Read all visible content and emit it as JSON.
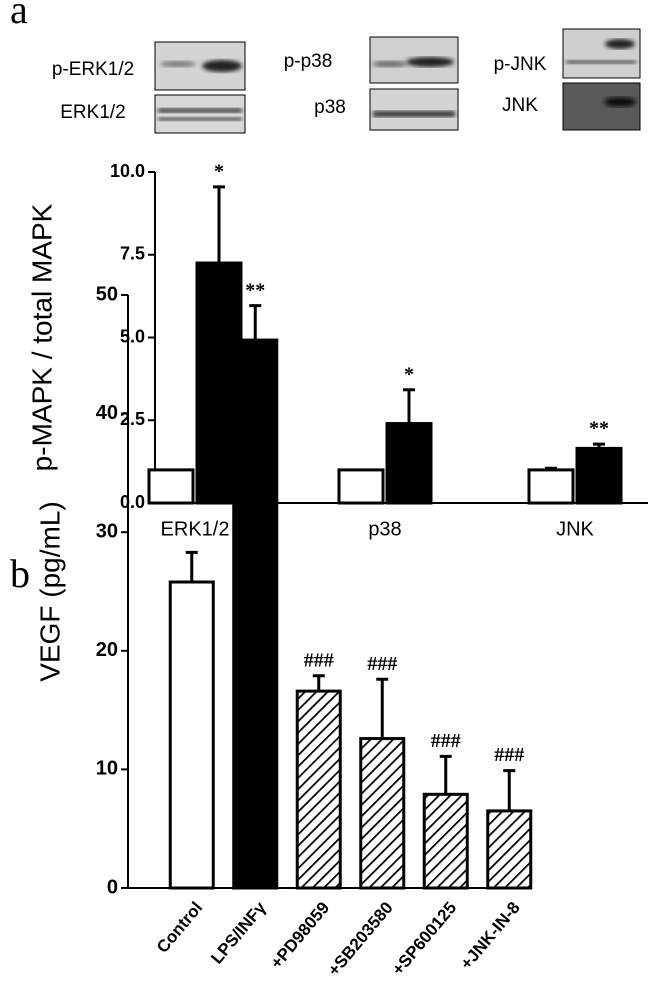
{
  "chart_data": [
    {
      "type": "bar",
      "panel_label": "a",
      "ylabel": "p-MAPK / total MAPK",
      "blot_labels": [
        "p-ERK1/2",
        "ERK1/2",
        "p-p38",
        "p38",
        "p-JNK",
        "JNK"
      ],
      "categories": [
        "ERK1/2",
        "p38",
        "JNK"
      ],
      "series": [
        {
          "color": "#ffffff",
          "values": [
            1.0,
            1.0,
            1.0
          ],
          "errors": [
            0,
            0,
            0.05
          ],
          "annotations": [
            null,
            null,
            null
          ]
        },
        {
          "color": "#000000",
          "values": [
            7.25,
            2.4,
            1.65
          ],
          "errors": [
            2.3,
            1.02,
            0.13
          ],
          "annotations": [
            "*",
            "*",
            "**"
          ]
        }
      ],
      "ylim": [
        0,
        10
      ],
      "yticks": [
        {
          "value": 0,
          "label": "0.0"
        },
        2.5,
        {
          "value": 5,
          "label": "5.0"
        },
        7.5,
        {
          "value": 10,
          "label": "10.0"
        }
      ]
    },
    {
      "type": "bar",
      "panel_label": "b",
      "ylabel": "VEGF (pg/mL)",
      "categories": [
        "Control",
        "LPS/INFγ",
        "+PD98059",
        "+SB203580",
        "+SP600125",
        "+JNK-IN-8"
      ],
      "values": [
        25.8,
        46.2,
        16.6,
        12.6,
        7.9,
        6.5
      ],
      "errors": [
        2.5,
        2.9,
        1.3,
        5.0,
        3.2,
        3.4
      ],
      "annotations": [
        null,
        "**",
        "###",
        "###",
        "###",
        "###"
      ],
      "fills": [
        "white",
        "black",
        "hatch",
        "hatch",
        "hatch",
        "hatch"
      ],
      "ylim": [
        0,
        50
      ],
      "yticks": [
        0,
        10,
        20,
        30,
        40,
        50
      ]
    }
  ]
}
